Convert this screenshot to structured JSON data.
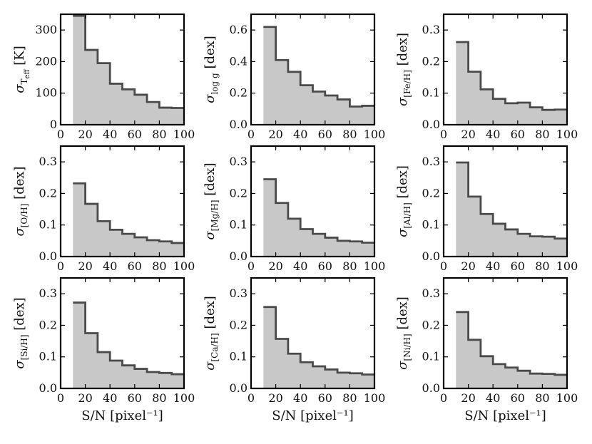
{
  "chart_data": [
    {
      "type": "area",
      "ylabel": {
        "sym": "σ",
        "sub": "T",
        "subsub": "eff",
        "unit": "[K]"
      },
      "xlabel": "",
      "bin_edges": [
        10,
        20,
        30,
        40,
        50,
        60,
        70,
        80,
        90,
        100
      ],
      "values": [
        345,
        237,
        195,
        130,
        112,
        95,
        72,
        54,
        53
      ],
      "xlim": [
        0,
        100
      ],
      "ylim": [
        0,
        350
      ],
      "xticks": [
        "0",
        "20",
        "40",
        "60",
        "80",
        "100"
      ],
      "xtick_values": [
        0,
        20,
        40,
        60,
        80,
        100
      ],
      "yticks": [
        "0",
        "100",
        "200",
        "300"
      ],
      "ytick_values": [
        0,
        100,
        200,
        300
      ]
    },
    {
      "type": "area",
      "ylabel": {
        "sym": "σ",
        "sub": "log g",
        "unit": "[dex]"
      },
      "xlabel": "",
      "bin_edges": [
        10,
        20,
        30,
        40,
        50,
        60,
        70,
        80,
        90,
        100
      ],
      "values": [
        0.62,
        0.41,
        0.335,
        0.25,
        0.21,
        0.185,
        0.16,
        0.115,
        0.12
      ],
      "xlim": [
        0,
        100
      ],
      "ylim": [
        0,
        0.7
      ],
      "xticks": [
        "0",
        "20",
        "40",
        "60",
        "80",
        "100"
      ],
      "xtick_values": [
        0,
        20,
        40,
        60,
        80,
        100
      ],
      "yticks": [
        "0.0",
        "0.2",
        "0.4",
        "0.6"
      ],
      "ytick_values": [
        0,
        0.2,
        0.4,
        0.6
      ]
    },
    {
      "type": "area",
      "ylabel": {
        "sym": "σ",
        "sub": "[Fe/H]",
        "unit": "[dex]"
      },
      "xlabel": "",
      "bin_edges": [
        10,
        20,
        30,
        40,
        50,
        60,
        70,
        80,
        90,
        100
      ],
      "values": [
        0.262,
        0.168,
        0.112,
        0.082,
        0.068,
        0.07,
        0.055,
        0.047,
        0.048
      ],
      "xlim": [
        0,
        100
      ],
      "ylim": [
        0,
        0.35
      ],
      "xticks": [
        "0",
        "20",
        "40",
        "60",
        "80",
        "100"
      ],
      "xtick_values": [
        0,
        20,
        40,
        60,
        80,
        100
      ],
      "yticks": [
        "0.0",
        "0.1",
        "0.2",
        "0.3"
      ],
      "ytick_values": [
        0,
        0.1,
        0.2,
        0.3
      ]
    },
    {
      "type": "area",
      "ylabel": {
        "sym": "σ",
        "sub": "[O/H]",
        "unit": "[dex]"
      },
      "xlabel": "",
      "bin_edges": [
        10,
        20,
        30,
        40,
        50,
        60,
        70,
        80,
        90,
        100
      ],
      "values": [
        0.232,
        0.167,
        0.112,
        0.085,
        0.072,
        0.061,
        0.052,
        0.048,
        0.043
      ],
      "xlim": [
        0,
        100
      ],
      "ylim": [
        0,
        0.35
      ],
      "xticks": [
        "0",
        "20",
        "40",
        "60",
        "80",
        "100"
      ],
      "xtick_values": [
        0,
        20,
        40,
        60,
        80,
        100
      ],
      "yticks": [
        "0.0",
        "0.1",
        "0.2",
        "0.3"
      ],
      "ytick_values": [
        0,
        0.1,
        0.2,
        0.3
      ]
    },
    {
      "type": "area",
      "ylabel": {
        "sym": "σ",
        "sub": "[Mg/H]",
        "unit": "[dex]"
      },
      "xlabel": "",
      "bin_edges": [
        10,
        20,
        30,
        40,
        50,
        60,
        70,
        80,
        90,
        100
      ],
      "values": [
        0.245,
        0.17,
        0.12,
        0.087,
        0.072,
        0.06,
        0.05,
        0.048,
        0.044
      ],
      "xlim": [
        0,
        100
      ],
      "ylim": [
        0,
        0.35
      ],
      "xticks": [
        "0",
        "20",
        "40",
        "60",
        "80",
        "100"
      ],
      "xtick_values": [
        0,
        20,
        40,
        60,
        80,
        100
      ],
      "yticks": [
        "0.0",
        "0.1",
        "0.2",
        "0.3"
      ],
      "ytick_values": [
        0,
        0.1,
        0.2,
        0.3
      ]
    },
    {
      "type": "area",
      "ylabel": {
        "sym": "σ",
        "sub": "[Al/H]",
        "unit": "[dex]"
      },
      "xlabel": "",
      "bin_edges": [
        10,
        20,
        30,
        40,
        50,
        60,
        70,
        80,
        90,
        100
      ],
      "values": [
        0.298,
        0.19,
        0.135,
        0.104,
        0.086,
        0.072,
        0.064,
        0.063,
        0.057
      ],
      "xlim": [
        0,
        100
      ],
      "ylim": [
        0,
        0.35
      ],
      "xticks": [
        "0",
        "20",
        "40",
        "60",
        "80",
        "100"
      ],
      "xtick_values": [
        0,
        20,
        40,
        60,
        80,
        100
      ],
      "yticks": [
        "0.0",
        "0.1",
        "0.2",
        "0.3"
      ],
      "ytick_values": [
        0,
        0.1,
        0.2,
        0.3
      ]
    },
    {
      "type": "area",
      "ylabel": {
        "sym": "σ",
        "sub": "[Si/H]",
        "unit": "[dex]"
      },
      "xlabel": "S/N [pixel⁻¹]",
      "bin_edges": [
        10,
        20,
        30,
        40,
        50,
        60,
        70,
        80,
        90,
        100
      ],
      "values": [
        0.272,
        0.175,
        0.115,
        0.088,
        0.073,
        0.062,
        0.052,
        0.049,
        0.045
      ],
      "xlim": [
        0,
        100
      ],
      "ylim": [
        0,
        0.35
      ],
      "xticks": [
        "0",
        "20",
        "40",
        "60",
        "80",
        "100"
      ],
      "xtick_values": [
        0,
        20,
        40,
        60,
        80,
        100
      ],
      "yticks": [
        "0.0",
        "0.1",
        "0.2",
        "0.3"
      ],
      "ytick_values": [
        0,
        0.1,
        0.2,
        0.3
      ]
    },
    {
      "type": "area",
      "ylabel": {
        "sym": "σ",
        "sub": "[Ca/H]",
        "unit": "[dex]"
      },
      "xlabel": "S/N [pixel⁻¹]",
      "bin_edges": [
        10,
        20,
        30,
        40,
        50,
        60,
        70,
        80,
        90,
        100
      ],
      "values": [
        0.258,
        0.157,
        0.11,
        0.083,
        0.07,
        0.06,
        0.05,
        0.048,
        0.044
      ],
      "xlim": [
        0,
        100
      ],
      "ylim": [
        0,
        0.35
      ],
      "xticks": [
        "0",
        "20",
        "40",
        "60",
        "80",
        "100"
      ],
      "xtick_values": [
        0,
        20,
        40,
        60,
        80,
        100
      ],
      "yticks": [
        "0.0",
        "0.1",
        "0.2",
        "0.3"
      ],
      "ytick_values": [
        0,
        0.1,
        0.2,
        0.3
      ]
    },
    {
      "type": "area",
      "ylabel": {
        "sym": "σ",
        "sub": "[Ni/H]",
        "unit": "[dex]"
      },
      "xlabel": "S/N [pixel⁻¹]",
      "bin_edges": [
        10,
        20,
        30,
        40,
        50,
        60,
        70,
        80,
        90,
        100
      ],
      "values": [
        0.242,
        0.154,
        0.102,
        0.077,
        0.066,
        0.056,
        0.047,
        0.046,
        0.043
      ],
      "xlim": [
        0,
        100
      ],
      "ylim": [
        0,
        0.35
      ],
      "xticks": [
        "0",
        "20",
        "40",
        "60",
        "80",
        "100"
      ],
      "xtick_values": [
        0,
        20,
        40,
        60,
        80,
        100
      ],
      "yticks": [
        "0.0",
        "0.1",
        "0.2",
        "0.3"
      ],
      "ytick_values": [
        0,
        0.1,
        0.2,
        0.3
      ]
    }
  ],
  "style": {
    "fill_color": "#c8c8c8",
    "line_color": "#4a4a4a",
    "frame_color": "#000000",
    "text_color": "#111111"
  }
}
